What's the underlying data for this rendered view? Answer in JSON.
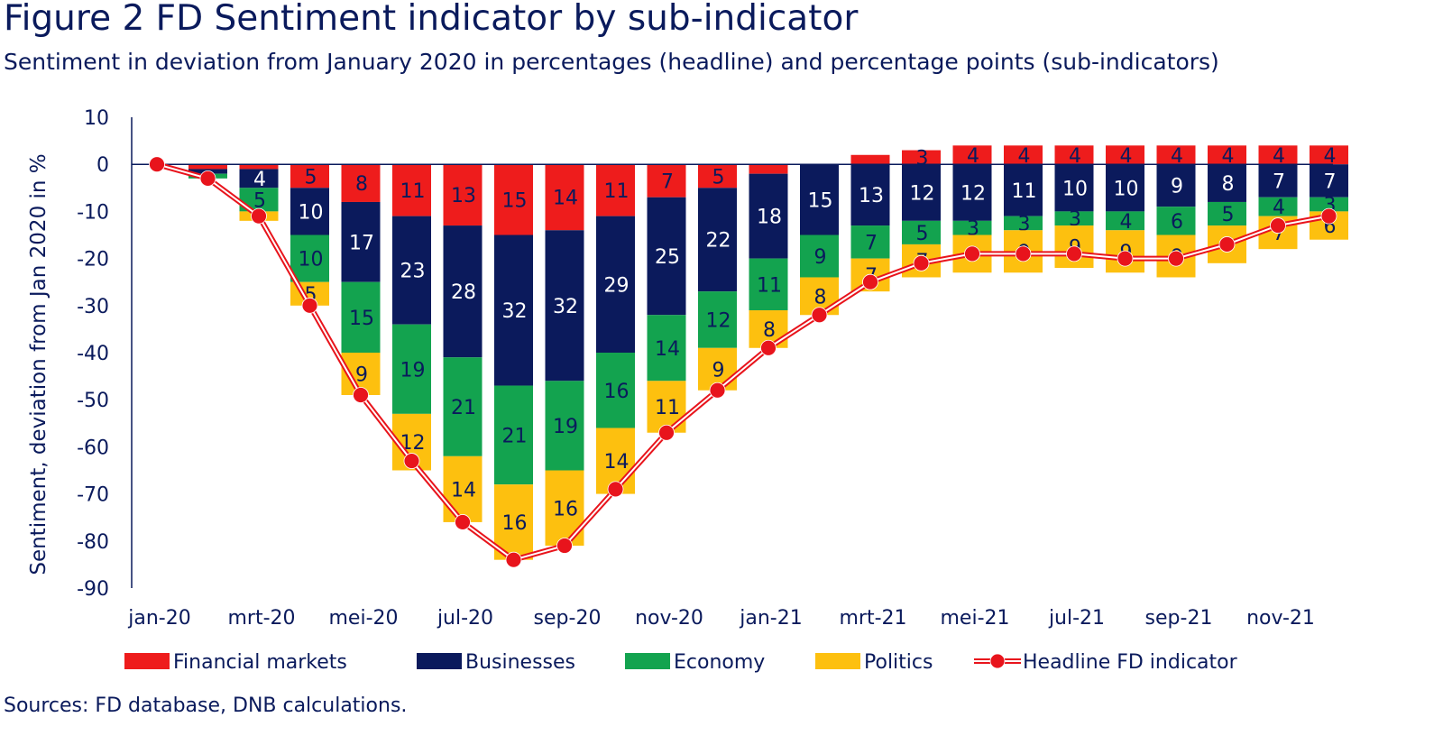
{
  "title": "Figure 2 FD Sentiment indicator by sub-indicator",
  "subtitle": "Sentiment in deviation from January 2020 in percentages (headline) and percentage points (sub-indicators)",
  "source": "Sources: FD database, DNB calculations.",
  "colors": {
    "financial": "#ee1c1c",
    "businesses": "#0b1a5c",
    "economy": "#13a34f",
    "politics": "#fdc00f",
    "headline": "#e8141c",
    "axis": "#0a1a5c"
  },
  "chart_data": {
    "type": "bar",
    "stacked": true,
    "title": "Figure 2 FD Sentiment indicator by sub-indicator",
    "ylabel": "Sentiment, deviation from Jan 2020 in %",
    "xlabel": "",
    "ylim": [
      -90,
      10
    ],
    "yticks": [
      10,
      0,
      -10,
      -20,
      -30,
      -40,
      -50,
      -60,
      -70,
      -80,
      -90
    ],
    "categories": [
      "jan-20",
      "feb-20",
      "mrt-20",
      "apr-20",
      "mei-20",
      "jun-20",
      "jul-20",
      "aug-20",
      "sep-20",
      "okt-20",
      "nov-20",
      "dec-20",
      "jan-21",
      "feb-21",
      "mrt-21",
      "apr-21",
      "mei-21",
      "jun-21",
      "jul-21",
      "aug-21",
      "sep-21",
      "okt-21",
      "nov-21",
      "dec-21"
    ],
    "tick_labels": [
      "jan-20",
      "",
      "mrt-20",
      "",
      "mei-20",
      "",
      "jul-20",
      "",
      "sep-20",
      "",
      "nov-20",
      "",
      "jan-21",
      "",
      "mrt-21",
      "",
      "mei-21",
      "",
      "jul-21",
      "",
      "sep-21",
      "",
      "nov-21",
      ""
    ],
    "series": [
      {
        "name": "Financial markets",
        "key": "financial",
        "values": [
          0,
          -1,
          -1,
          -5,
          -8,
          -11,
          -13,
          -15,
          -14,
          -11,
          -7,
          -5,
          -2,
          0,
          2,
          3,
          4,
          4,
          4,
          4,
          4,
          4,
          4,
          4
        ],
        "labels": [
          "",
          "",
          "",
          "5",
          "8",
          "11",
          "13",
          "15",
          "14",
          "11",
          "7",
          "5",
          "",
          "",
          "",
          "3",
          "4",
          "4",
          "4",
          "4",
          "4",
          "4",
          "4",
          "4"
        ]
      },
      {
        "name": "Businesses",
        "key": "businesses",
        "values": [
          0,
          -1,
          -4,
          -10,
          -17,
          -23,
          -28,
          -32,
          -32,
          -29,
          -25,
          -22,
          -18,
          -15,
          -13,
          -12,
          -12,
          -11,
          -10,
          -10,
          -9,
          -8,
          -7,
          -7
        ],
        "labels": [
          "",
          "",
          "4",
          "10",
          "17",
          "23",
          "28",
          "32",
          "32",
          "29",
          "25",
          "22",
          "18",
          "15",
          "13",
          "12",
          "12",
          "11",
          "10",
          "10",
          "9",
          "8",
          "7",
          "7"
        ]
      },
      {
        "name": "Economy",
        "key": "economy",
        "values": [
          0,
          -1,
          -5,
          -10,
          -15,
          -19,
          -21,
          -21,
          -19,
          -16,
          -14,
          -12,
          -11,
          -9,
          -7,
          -5,
          -3,
          -3,
          -3,
          -4,
          -6,
          -5,
          -4,
          -3
        ],
        "labels": [
          "",
          "",
          "5",
          "10",
          "15",
          "19",
          "21",
          "21",
          "19",
          "16",
          "14",
          "12",
          "11",
          "9",
          "7",
          "5",
          "3",
          "3",
          "3",
          "4",
          "6",
          "5",
          "4",
          "3"
        ]
      },
      {
        "name": "Politics",
        "key": "politics",
        "values": [
          0,
          0,
          -2,
          -5,
          -9,
          -12,
          -14,
          -16,
          -16,
          -14,
          -11,
          -9,
          -8,
          -8,
          -7,
          -7,
          -8,
          -9,
          -9,
          -9,
          -9,
          -8,
          -7,
          -6
        ],
        "labels": [
          "",
          "",
          "2",
          "5",
          "9",
          "12",
          "14",
          "16",
          "16",
          "14",
          "11",
          "9",
          "8",
          "8",
          "7",
          "7",
          "8",
          "9",
          "9",
          "9",
          "9",
          "8",
          "7",
          "6"
        ]
      }
    ],
    "headline": {
      "name": "Headline FD indicator",
      "type": "line",
      "values": [
        0,
        -3,
        -11,
        -30,
        -49,
        -63,
        -76,
        -84,
        -81,
        -69,
        -57,
        -48,
        -39,
        -32,
        -25,
        -21,
        -19,
        -19,
        -19,
        -20,
        -20,
        -17,
        -13,
        -11
      ]
    },
    "legend": [
      "Financial markets",
      "Businesses",
      "Economy",
      "Politics",
      "Headline FD indicator"
    ],
    "legend_position": "bottom"
  }
}
